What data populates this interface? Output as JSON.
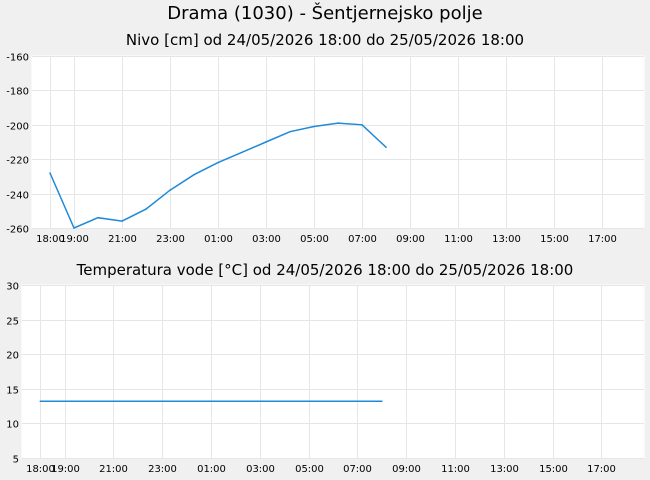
{
  "title": "Drama (1030) - Šentjernejsko polje",
  "chart_data": [
    {
      "type": "line",
      "title": "Nivo [cm] od 24/05/2026 18:00 do 25/05/2026 18:00",
      "xlabel": "",
      "ylabel": "",
      "x_ticks": [
        "19:00",
        "21:00",
        "23:00",
        "01:00",
        "03:00",
        "05:00",
        "07:00",
        "09:00",
        "11:00",
        "13:00",
        "15:00",
        "17:00",
        "18:00"
      ],
      "y_ticks": [
        "-160",
        "-180",
        "-200",
        "-220",
        "-240",
        "-260"
      ],
      "ylim": [
        -260,
        -160
      ],
      "xlim": [
        "24/05/2026 17:15",
        "25/05/2026 18:45"
      ],
      "grid": true,
      "color": "#1f8ad8",
      "series": [
        {
          "x": [
            "24/05/2026 18:00",
            "24/05/2026 19:00",
            "24/05/2026 20:00",
            "24/05/2026 21:00",
            "24/05/2026 22:00",
            "24/05/2026 23:00",
            "25/05/2026 00:00",
            "25/05/2026 01:00",
            "25/05/2026 02:00",
            "25/05/2026 03:00",
            "25/05/2026 04:00",
            "25/05/2026 05:00",
            "25/05/2026 06:00",
            "25/05/2026 07:00",
            "25/05/2026 08:00"
          ],
          "y": [
            -228,
            -260,
            -254,
            -256,
            -249,
            -238,
            -229,
            -222,
            -216,
            -210,
            -204,
            -201,
            -199,
            -200,
            -213
          ]
        }
      ]
    },
    {
      "type": "line",
      "title": "Temperatura vode [°C] od 24/05/2026 18:00 do 25/05/2026 18:00",
      "xlabel": "",
      "ylabel": "",
      "x_ticks": [
        "19:00",
        "21:00",
        "23:00",
        "01:00",
        "03:00",
        "05:00",
        "07:00",
        "09:00",
        "11:00",
        "13:00",
        "15:00",
        "17:00",
        "18:00"
      ],
      "y_ticks": [
        "30",
        "25",
        "20",
        "15",
        "10",
        "5"
      ],
      "ylim": [
        5,
        30
      ],
      "xlim": [
        "24/05/2026 17:15",
        "25/05/2026 18:45"
      ],
      "grid": true,
      "color": "#1f8ad8",
      "series": [
        {
          "x": [
            "24/05/2026 18:00",
            "25/05/2026 08:00"
          ],
          "y": [
            13.2,
            13.2
          ]
        }
      ]
    }
  ]
}
